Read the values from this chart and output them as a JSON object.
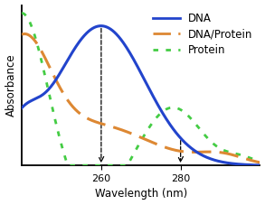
{
  "title": "",
  "xlabel": "Wavelength (nm)",
  "ylabel": "Absorbance",
  "xlim": [
    240,
    300
  ],
  "ylim": [
    0,
    1.0
  ],
  "x_ticks": [
    260,
    280
  ],
  "background_color": "#ffffff",
  "dna_color": "#2244cc",
  "dna_protein_color": "#dd8833",
  "protein_color": "#44cc44",
  "legend_fontsize": 8.5
}
